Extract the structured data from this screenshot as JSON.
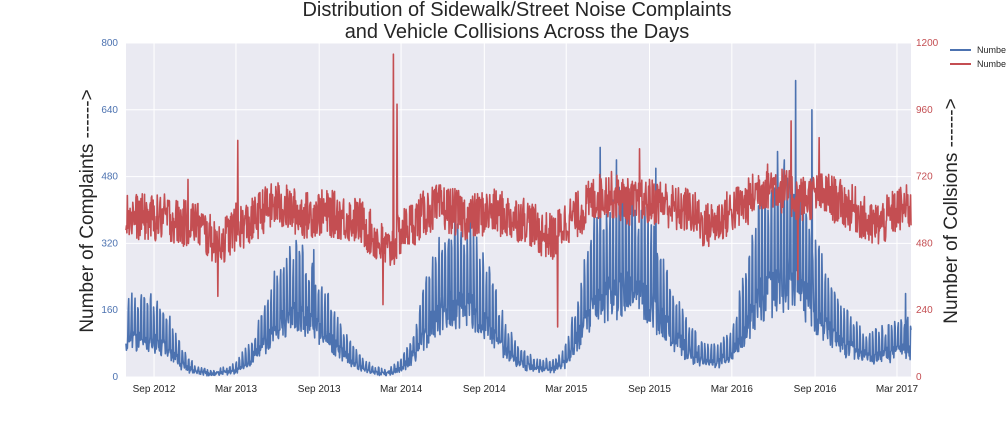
{
  "chart_data": {
    "type": "line",
    "title_lines": [
      "Distribution of Sidewalk/Street Noise Complaints",
      "and Vehicle Collisions Across the Days"
    ],
    "ylabel_left": "Number of Complaints ------>",
    "ylabel_right": "Number of Collsions ------>",
    "ylim_left": [
      0,
      800
    ],
    "ylim_right": [
      0,
      1200
    ],
    "yticks_left": [
      0,
      160,
      320,
      480,
      640,
      800
    ],
    "yticks_right": [
      0,
      240,
      480,
      720,
      960,
      1200
    ],
    "x_range": [
      "2012-07-01",
      "2017-04-01"
    ],
    "xticks": [
      {
        "date": "2012-09-01",
        "label": "Sep 2012"
      },
      {
        "date": "2013-03-01",
        "label": "Mar 2013"
      },
      {
        "date": "2013-09-01",
        "label": "Sep 2013"
      },
      {
        "date": "2014-03-01",
        "label": "Mar 2014"
      },
      {
        "date": "2014-09-01",
        "label": "Sep 2014"
      },
      {
        "date": "2015-03-01",
        "label": "Mar 2015"
      },
      {
        "date": "2015-09-01",
        "label": "Sep 2015"
      },
      {
        "date": "2016-03-01",
        "label": "Mar 2016"
      },
      {
        "date": "2016-09-01",
        "label": "Sep 2016"
      },
      {
        "date": "2017-03-01",
        "label": "Mar 2017"
      }
    ],
    "grid": true,
    "legend_position": "outside right, top",
    "series": [
      {
        "name": "Numbe",
        "axis": "left",
        "color": "#4c72b0",
        "points": [
          [
            "2012-07-01",
            110
          ],
          [
            "2012-08-01",
            120
          ],
          [
            "2012-09-01",
            110
          ],
          [
            "2012-10-01",
            90
          ],
          [
            "2012-11-01",
            40
          ],
          [
            "2012-12-01",
            15
          ],
          [
            "2013-01-01",
            10
          ],
          [
            "2013-02-01",
            12
          ],
          [
            "2013-03-01",
            20
          ],
          [
            "2013-04-01",
            45
          ],
          [
            "2013-05-01",
            100
          ],
          [
            "2013-06-01",
            160
          ],
          [
            "2013-07-01",
            180
          ],
          [
            "2013-08-01",
            185
          ],
          [
            "2013-09-01",
            140
          ],
          [
            "2013-10-01",
            100
          ],
          [
            "2013-11-01",
            60
          ],
          [
            "2013-12-01",
            30
          ],
          [
            "2014-01-01",
            12
          ],
          [
            "2014-02-01",
            10
          ],
          [
            "2014-03-01",
            25
          ],
          [
            "2014-04-01",
            70
          ],
          [
            "2014-05-01",
            150
          ],
          [
            "2014-06-01",
            200
          ],
          [
            "2014-07-01",
            220
          ],
          [
            "2014-08-01",
            215
          ],
          [
            "2014-09-01",
            170
          ],
          [
            "2014-10-01",
            110
          ],
          [
            "2014-11-01",
            60
          ],
          [
            "2014-12-01",
            35
          ],
          [
            "2015-01-01",
            22
          ],
          [
            "2015-02-01",
            25
          ],
          [
            "2015-03-01",
            45
          ],
          [
            "2015-04-01",
            130
          ],
          [
            "2015-05-01",
            230
          ],
          [
            "2015-06-01",
            250
          ],
          [
            "2015-07-01",
            260
          ],
          [
            "2015-08-01",
            255
          ],
          [
            "2015-09-01",
            230
          ],
          [
            "2015-10-01",
            170
          ],
          [
            "2015-11-01",
            110
          ],
          [
            "2015-12-01",
            70
          ],
          [
            "2016-01-01",
            45
          ],
          [
            "2016-02-01",
            45
          ],
          [
            "2016-03-01",
            70
          ],
          [
            "2016-04-01",
            150
          ],
          [
            "2016-05-01",
            240
          ],
          [
            "2016-06-01",
            280
          ],
          [
            "2016-07-01",
            300
          ],
          [
            "2016-08-01",
            270
          ],
          [
            "2016-09-01",
            200
          ],
          [
            "2016-10-01",
            140
          ],
          [
            "2016-11-01",
            100
          ],
          [
            "2016-12-01",
            75
          ],
          [
            "2017-01-01",
            60
          ],
          [
            "2017-02-01",
            70
          ],
          [
            "2017-03-01",
            80
          ],
          [
            "2017-04-01",
            85
          ]
        ],
        "peaks": [
          [
            "2012-08-10",
            190
          ],
          [
            "2013-07-20",
            290
          ],
          [
            "2013-08-20",
            305
          ],
          [
            "2014-06-15",
            330
          ],
          [
            "2014-07-25",
            350
          ],
          [
            "2014-08-15",
            335
          ],
          [
            "2015-05-15",
            550
          ],
          [
            "2015-06-20",
            520
          ],
          [
            "2015-09-15",
            500
          ],
          [
            "2016-06-10",
            540
          ],
          [
            "2016-07-20",
            710
          ],
          [
            "2016-08-25",
            640
          ],
          [
            "2017-03-20",
            200
          ]
        ]
      },
      {
        "name": "Numbe",
        "axis": "right",
        "color": "#c44e52",
        "points": [
          [
            "2012-07-01",
            580
          ],
          [
            "2012-08-01",
            575
          ],
          [
            "2012-09-01",
            570
          ],
          [
            "2012-10-01",
            575
          ],
          [
            "2012-11-01",
            550
          ],
          [
            "2012-12-01",
            560
          ],
          [
            "2013-01-01",
            500
          ],
          [
            "2013-02-01",
            490
          ],
          [
            "2013-03-01",
            540
          ],
          [
            "2013-04-01",
            550
          ],
          [
            "2013-05-01",
            600
          ],
          [
            "2013-06-01",
            620
          ],
          [
            "2013-07-01",
            600
          ],
          [
            "2013-08-01",
            580
          ],
          [
            "2013-09-01",
            590
          ],
          [
            "2013-10-01",
            585
          ],
          [
            "2013-11-01",
            570
          ],
          [
            "2013-12-01",
            560
          ],
          [
            "2014-01-01",
            500
          ],
          [
            "2014-02-01",
            450
          ],
          [
            "2014-03-01",
            520
          ],
          [
            "2014-04-01",
            560
          ],
          [
            "2014-05-01",
            600
          ],
          [
            "2014-06-01",
            610
          ],
          [
            "2014-07-01",
            590
          ],
          [
            "2014-08-01",
            570
          ],
          [
            "2014-09-01",
            590
          ],
          [
            "2014-10-01",
            590
          ],
          [
            "2014-11-01",
            570
          ],
          [
            "2014-12-01",
            570
          ],
          [
            "2015-01-01",
            520
          ],
          [
            "2015-02-01",
            500
          ],
          [
            "2015-03-01",
            560
          ],
          [
            "2015-04-01",
            590
          ],
          [
            "2015-05-01",
            640
          ],
          [
            "2015-06-01",
            660
          ],
          [
            "2015-07-01",
            640
          ],
          [
            "2015-08-01",
            620
          ],
          [
            "2015-09-01",
            630
          ],
          [
            "2015-10-01",
            630
          ],
          [
            "2015-11-01",
            600
          ],
          [
            "2015-12-01",
            600
          ],
          [
            "2016-01-01",
            540
          ],
          [
            "2016-02-01",
            560
          ],
          [
            "2016-03-01",
            600
          ],
          [
            "2016-04-01",
            620
          ],
          [
            "2016-05-01",
            680
          ],
          [
            "2016-06-01",
            690
          ],
          [
            "2016-07-01",
            660
          ],
          [
            "2016-08-01",
            640
          ],
          [
            "2016-09-01",
            650
          ],
          [
            "2016-10-01",
            650
          ],
          [
            "2016-11-01",
            620
          ],
          [
            "2016-12-01",
            600
          ],
          [
            "2017-01-01",
            540
          ],
          [
            "2017-02-01",
            560
          ],
          [
            "2017-03-01",
            600
          ],
          [
            "2017-04-01",
            610
          ]
        ],
        "peaks": [
          [
            "2012-11-15",
            710
          ],
          [
            "2013-01-20",
            290
          ],
          [
            "2013-03-05",
            850
          ],
          [
            "2014-02-12",
            1160
          ],
          [
            "2014-02-20",
            980
          ],
          [
            "2014-01-20",
            260
          ],
          [
            "2015-02-10",
            180
          ],
          [
            "2015-08-10",
            820
          ],
          [
            "2016-07-10",
            920
          ],
          [
            "2016-07-25",
            350
          ],
          [
            "2016-09-10",
            860
          ]
        ]
      }
    ]
  }
}
